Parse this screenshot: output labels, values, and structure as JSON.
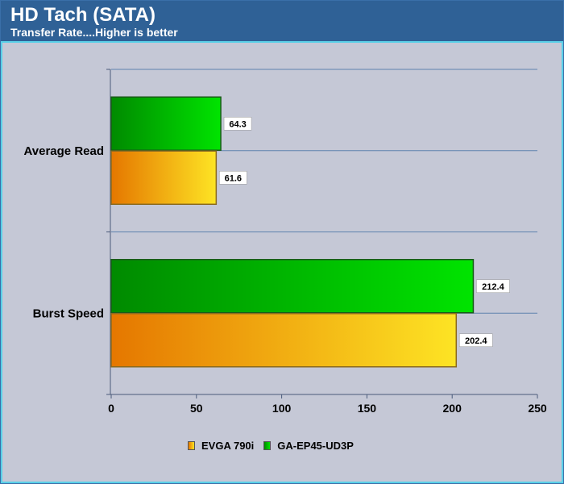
{
  "chart_data": {
    "type": "bar",
    "orientation": "horizontal",
    "title": "HD Tach (SATA)",
    "subtitle": "Transfer Rate....Higher is better",
    "categories": [
      "Average Read",
      "Burst Speed"
    ],
    "series": [
      {
        "name": "EVGA 790i",
        "values": [
          61.6,
          202.4
        ],
        "color_dark": "#e57700",
        "color_light": "#fde424"
      },
      {
        "name": "GA-EP45-UD3P",
        "values": [
          64.3,
          212.4
        ],
        "color_dark": "#008a00",
        "color_light": "#00e400"
      }
    ],
    "xlim": [
      0,
      250
    ],
    "xticks": [
      "0",
      "50",
      "100",
      "150",
      "200",
      "250"
    ],
    "grid": true,
    "legend": "bottom-center"
  }
}
